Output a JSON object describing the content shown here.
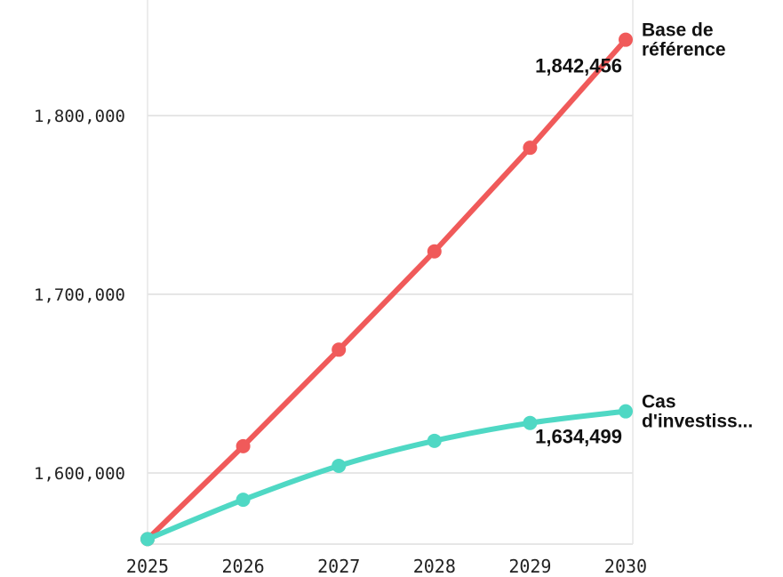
{
  "chart_data": {
    "type": "line",
    "title": "",
    "xlabel": "",
    "ylabel": "",
    "x": [
      "2025",
      "2026",
      "2027",
      "2028",
      "2029",
      "2030"
    ],
    "yticks": [
      1600000,
      1700000,
      1800000
    ],
    "ytick_labels": [
      "1,600,000",
      "1,700,000",
      "1,800,000"
    ],
    "ylim": [
      1565000,
      1855000
    ],
    "grid": "horizontal",
    "series": [
      {
        "name": "Base de référence",
        "label_lines": [
          "Base de",
          "référence"
        ],
        "color": "#f05a5a",
        "values": [
          1563000,
          1615000,
          1669000,
          1724000,
          1782000,
          1842456
        ],
        "end_value_label": "1,842,456"
      },
      {
        "name": "Cas d'investiss...",
        "label_lines": [
          "Cas",
          "d'investiss..."
        ],
        "color": "#4fd8c4",
        "values": [
          1563000,
          1585000,
          1604000,
          1618000,
          1628000,
          1634499
        ],
        "end_value_label": "1,634,499"
      }
    ]
  }
}
